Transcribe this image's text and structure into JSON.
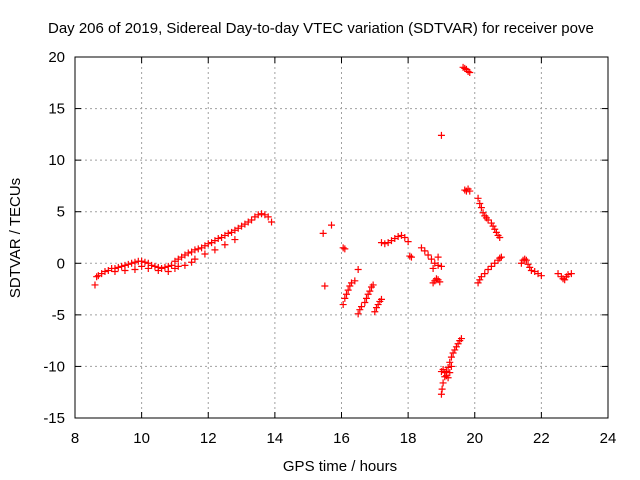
{
  "chart_data": {
    "type": "scatter",
    "title": "Day 206 of 2019, Sidereal Day-to-day VTEC variation (SDTVAR) for receiver pove",
    "xlabel": "GPS time / hours",
    "ylabel": "SDTVAR / TECUs",
    "xlim": [
      8,
      24
    ],
    "ylim": [
      -15,
      20
    ],
    "xticks": [
      8,
      10,
      12,
      14,
      16,
      18,
      20,
      22,
      24
    ],
    "yticks": [
      -15,
      -10,
      -5,
      0,
      5,
      10,
      15,
      20
    ],
    "grid": true,
    "marker": "+",
    "color": "#ff0000",
    "series": [
      {
        "name": "SDTVAR",
        "points": [
          [
            8.6,
            -2.1
          ],
          [
            8.65,
            -1.3
          ],
          [
            8.7,
            -1.2
          ],
          [
            8.8,
            -1.0
          ],
          [
            8.9,
            -0.8
          ],
          [
            9.0,
            -0.7
          ],
          [
            9.1,
            -0.5
          ],
          [
            9.2,
            -0.5
          ],
          [
            9.3,
            -0.4
          ],
          [
            9.4,
            -0.3
          ],
          [
            9.5,
            -0.2
          ],
          [
            9.6,
            -0.1
          ],
          [
            9.7,
            0.0
          ],
          [
            9.8,
            0.1
          ],
          [
            9.9,
            0.2
          ],
          [
            10.0,
            0.2
          ],
          [
            10.1,
            0.1
          ],
          [
            10.2,
            0.0
          ],
          [
            10.3,
            -0.2
          ],
          [
            10.4,
            -0.3
          ],
          [
            10.5,
            -0.4
          ],
          [
            10.6,
            -0.5
          ],
          [
            10.7,
            -0.4
          ],
          [
            10.8,
            -0.3
          ],
          [
            10.9,
            -0.2
          ],
          [
            11.0,
            0.2
          ],
          [
            11.1,
            0.4
          ],
          [
            11.2,
            0.6
          ],
          [
            11.3,
            0.8
          ],
          [
            11.4,
            1.0
          ],
          [
            11.5,
            1.1
          ],
          [
            11.6,
            1.3
          ],
          [
            11.7,
            1.4
          ],
          [
            11.8,
            1.5
          ],
          [
            11.9,
            1.7
          ],
          [
            12.0,
            1.9
          ],
          [
            12.1,
            2.0
          ],
          [
            12.2,
            2.2
          ],
          [
            12.3,
            2.4
          ],
          [
            12.4,
            2.5
          ],
          [
            12.5,
            2.7
          ],
          [
            12.6,
            2.9
          ],
          [
            12.7,
            3.0
          ],
          [
            12.8,
            3.2
          ],
          [
            12.9,
            3.4
          ],
          [
            13.0,
            3.6
          ],
          [
            13.1,
            3.8
          ],
          [
            13.2,
            4.0
          ],
          [
            13.3,
            4.2
          ],
          [
            13.4,
            4.5
          ],
          [
            13.5,
            4.7
          ],
          [
            13.6,
            4.8
          ],
          [
            13.7,
            4.7
          ],
          [
            13.8,
            4.5
          ],
          [
            13.9,
            4.0
          ],
          [
            9.5,
            -0.7
          ],
          [
            9.8,
            -0.6
          ],
          [
            10.2,
            -0.5
          ],
          [
            10.5,
            -0.7
          ],
          [
            10.8,
            -0.8
          ],
          [
            11.0,
            -0.5
          ],
          [
            11.3,
            -0.2
          ],
          [
            11.6,
            0.4
          ],
          [
            11.9,
            0.9
          ],
          [
            12.2,
            1.3
          ],
          [
            12.5,
            1.8
          ],
          [
            12.8,
            2.3
          ],
          [
            9.2,
            -0.8
          ],
          [
            10.0,
            -0.3
          ],
          [
            11.1,
            -0.3
          ],
          [
            11.5,
            0.1
          ],
          [
            15.45,
            2.9
          ],
          [
            15.5,
            -2.2
          ],
          [
            15.7,
            3.7
          ],
          [
            16.05,
            1.5
          ],
          [
            16.1,
            1.4
          ],
          [
            16.5,
            -0.6
          ],
          [
            16.05,
            -4.0
          ],
          [
            16.1,
            -3.4
          ],
          [
            16.15,
            -3.0
          ],
          [
            16.2,
            -2.6
          ],
          [
            16.25,
            -2.2
          ],
          [
            16.3,
            -1.9
          ],
          [
            16.4,
            -1.7
          ],
          [
            16.5,
            -4.9
          ],
          [
            16.55,
            -4.5
          ],
          [
            16.6,
            -4.2
          ],
          [
            16.7,
            -3.8
          ],
          [
            16.75,
            -3.4
          ],
          [
            16.8,
            -3.0
          ],
          [
            16.85,
            -2.7
          ],
          [
            16.9,
            -2.3
          ],
          [
            16.95,
            -2.1
          ],
          [
            17.0,
            -4.7
          ],
          [
            17.05,
            -4.3
          ],
          [
            17.1,
            -4.0
          ],
          [
            17.15,
            -3.7
          ],
          [
            17.2,
            -3.5
          ],
          [
            17.2,
            2.0
          ],
          [
            17.3,
            1.9
          ],
          [
            17.4,
            2.0
          ],
          [
            17.5,
            2.2
          ],
          [
            17.6,
            2.4
          ],
          [
            17.7,
            2.6
          ],
          [
            17.8,
            2.7
          ],
          [
            17.9,
            2.5
          ],
          [
            18.0,
            2.1
          ],
          [
            18.05,
            0.7
          ],
          [
            18.1,
            0.6
          ],
          [
            18.4,
            1.5
          ],
          [
            18.5,
            1.2
          ],
          [
            18.6,
            0.8
          ],
          [
            18.7,
            0.4
          ],
          [
            18.8,
            0.0
          ],
          [
            18.9,
            -0.2
          ],
          [
            19.0,
            -0.3
          ],
          [
            18.75,
            -0.5
          ],
          [
            18.9,
            0.6
          ],
          [
            18.75,
            -1.9
          ],
          [
            18.8,
            -1.7
          ],
          [
            18.85,
            -1.5
          ],
          [
            18.9,
            -1.6
          ],
          [
            18.95,
            -1.8
          ],
          [
            19.0,
            12.4
          ],
          [
            19.0,
            -12.7
          ],
          [
            19.02,
            -12.2
          ],
          [
            19.05,
            -11.6
          ],
          [
            19.1,
            -11.0
          ],
          [
            19.15,
            -10.5
          ],
          [
            19.2,
            -10.1
          ],
          [
            19.25,
            -9.6
          ],
          [
            19.3,
            -9.1
          ],
          [
            19.35,
            -8.7
          ],
          [
            19.4,
            -8.4
          ],
          [
            19.45,
            -8.1
          ],
          [
            19.5,
            -7.8
          ],
          [
            19.55,
            -7.5
          ],
          [
            19.6,
            -7.3
          ],
          [
            19.0,
            -10.5
          ],
          [
            19.05,
            -10.3
          ],
          [
            19.1,
            -10.6
          ],
          [
            19.15,
            -10.9
          ],
          [
            19.2,
            -11.1
          ],
          [
            19.25,
            -10.6
          ],
          [
            19.3,
            -10.0
          ],
          [
            19.65,
            19.0
          ],
          [
            19.7,
            18.9
          ],
          [
            19.75,
            18.8
          ],
          [
            19.8,
            18.6
          ],
          [
            19.85,
            18.5
          ],
          [
            19.7,
            7.1
          ],
          [
            19.75,
            7.0
          ],
          [
            19.8,
            7.2
          ],
          [
            19.85,
            7.0
          ],
          [
            20.1,
            6.3
          ],
          [
            20.15,
            5.8
          ],
          [
            20.2,
            5.4
          ],
          [
            20.25,
            4.9
          ],
          [
            20.3,
            4.6
          ],
          [
            20.35,
            4.4
          ],
          [
            20.4,
            4.2
          ],
          [
            20.5,
            3.9
          ],
          [
            20.55,
            3.6
          ],
          [
            20.6,
            3.3
          ],
          [
            20.65,
            3.0
          ],
          [
            20.7,
            2.7
          ],
          [
            20.75,
            2.5
          ],
          [
            20.1,
            -1.9
          ],
          [
            20.15,
            -1.6
          ],
          [
            20.2,
            -1.3
          ],
          [
            20.3,
            -1.0
          ],
          [
            20.4,
            -0.6
          ],
          [
            20.5,
            -0.3
          ],
          [
            20.6,
            0.0
          ],
          [
            20.7,
            0.3
          ],
          [
            20.75,
            0.5
          ],
          [
            20.8,
            0.6
          ],
          [
            21.4,
            0.0
          ],
          [
            21.45,
            0.3
          ],
          [
            21.5,
            0.4
          ],
          [
            21.55,
            0.3
          ],
          [
            21.6,
            -0.1
          ],
          [
            21.65,
            -0.4
          ],
          [
            21.7,
            -0.7
          ],
          [
            21.8,
            -0.8
          ],
          [
            21.9,
            -1.0
          ],
          [
            22.0,
            -1.2
          ],
          [
            22.5,
            -1.0
          ],
          [
            22.6,
            -1.3
          ],
          [
            22.65,
            -1.5
          ],
          [
            22.7,
            -1.6
          ],
          [
            22.75,
            -1.3
          ],
          [
            22.8,
            -1.1
          ],
          [
            22.9,
            -1.0
          ]
        ]
      }
    ]
  }
}
